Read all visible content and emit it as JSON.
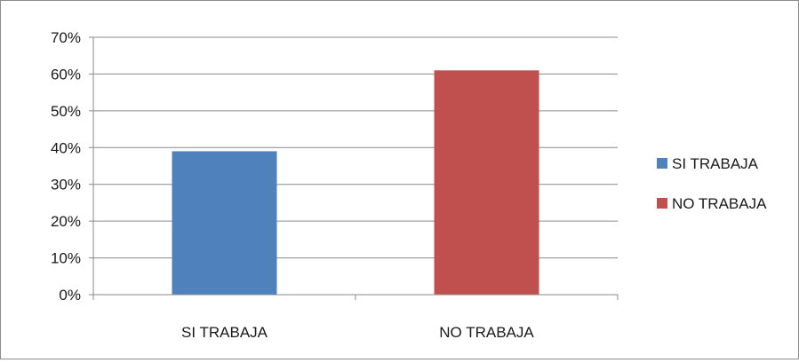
{
  "chart_data": {
    "type": "bar",
    "title": "",
    "xlabel": "",
    "ylabel": "",
    "categories": [
      "SI TRABAJA",
      "NO TRABAJA"
    ],
    "values": [
      0.39,
      0.61
    ],
    "colors": [
      "#4f81bd",
      "#c0504d"
    ],
    "ylim": [
      0,
      0.7
    ],
    "yticks": [
      "0%",
      "10%",
      "20%",
      "30%",
      "40%",
      "50%",
      "60%",
      "70%"
    ],
    "grid": true,
    "legend": {
      "placement": "right",
      "entries": [
        "SI TRABAJA",
        "NO TRABAJA"
      ]
    }
  }
}
